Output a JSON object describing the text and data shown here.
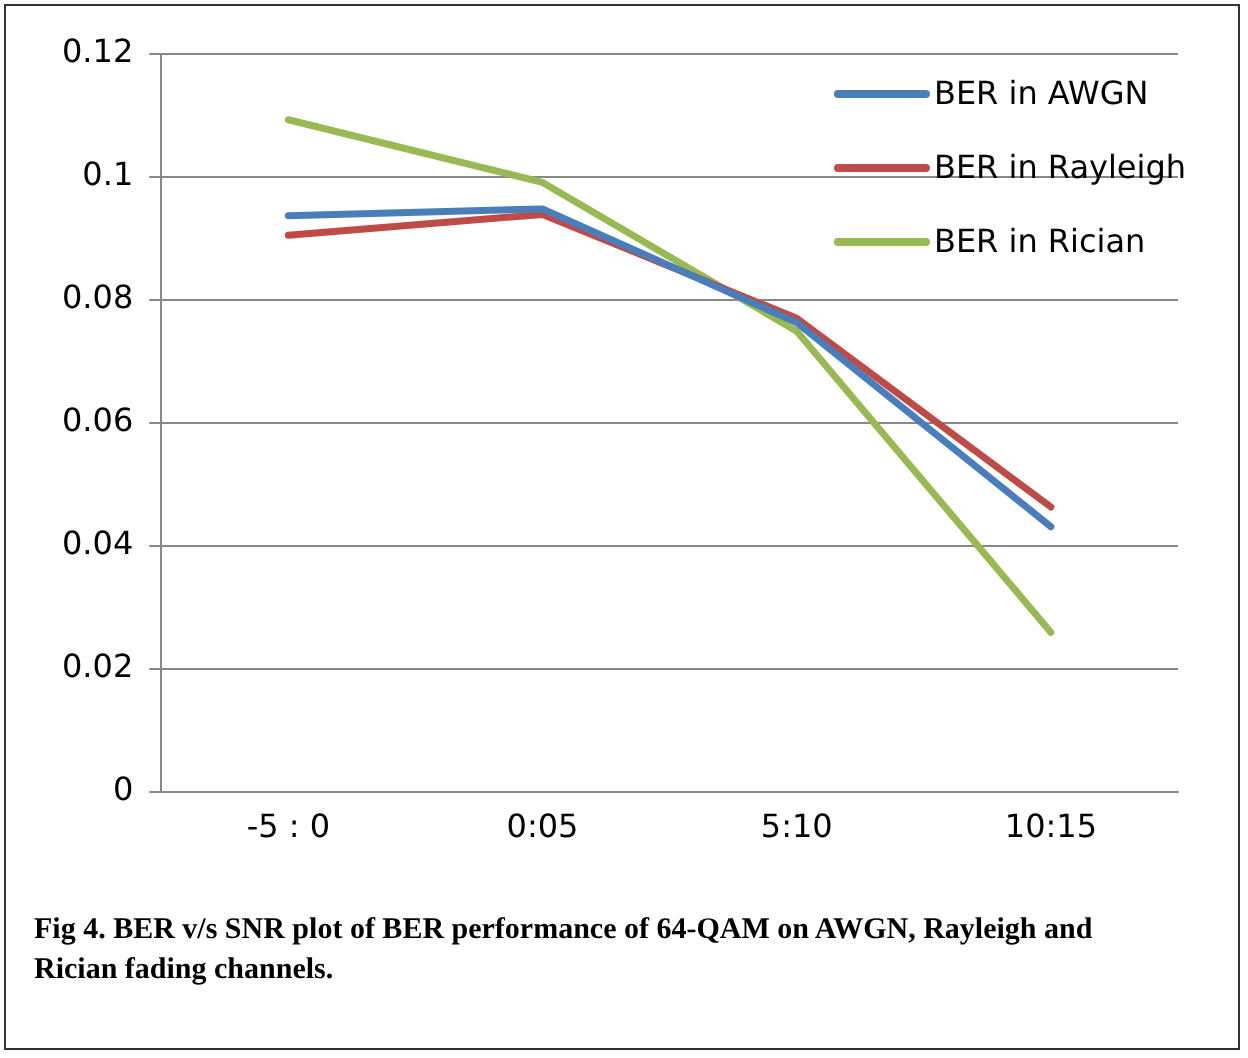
{
  "chart_data": {
    "type": "line",
    "categories": [
      "-5 : 0",
      "0:05",
      "5:10",
      "10:15"
    ],
    "series": [
      {
        "name": "BER in AWGN",
        "color": "#4a7ebb",
        "values": [
          0.0937,
          0.0948,
          0.0763,
          0.0431
        ]
      },
      {
        "name": "BER in Rayleigh",
        "color": "#be4b48",
        "values": [
          0.0905,
          0.0939,
          0.077,
          0.0463
        ]
      },
      {
        "name": "BER in Rician",
        "color": "#98b954",
        "values": [
          0.1093,
          0.0991,
          0.0749,
          0.0259
        ]
      }
    ],
    "ylim": [
      0,
      0.12
    ],
    "yticks": [
      0,
      0.02,
      0.04,
      0.06,
      0.08,
      0.1,
      0.12
    ],
    "grid": "y",
    "legend": "top right",
    "marker": "none",
    "line_style": "solid",
    "annotations": [
      "Fig 4. BER v/s SNR plot of BER performance of 64-QAM on AWGN, Rayleigh and Rician fading channels."
    ]
  }
}
